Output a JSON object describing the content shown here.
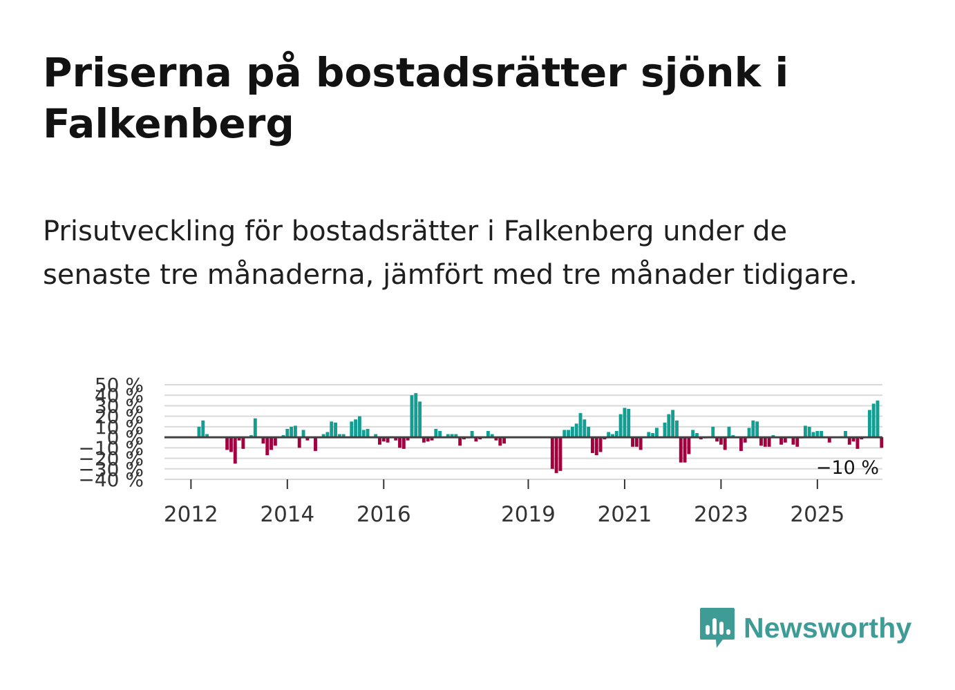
{
  "title": "Priserna på bostadsrätter sjönk i Falkenberg",
  "subtitle": "Prisutveckling för bostadsrätter i Falkenberg under de senaste tre månaderna, jämfört med tre månader tidigare.",
  "brand": {
    "name": "Newsworthy",
    "icon": "newsworthy-logo-icon",
    "color": "#3f9b95"
  },
  "colors": {
    "positive": "#139e94",
    "negative": "#a3003f",
    "grid": "#d9d9d9",
    "zero_line": "#404040"
  },
  "chart_data": {
    "type": "bar",
    "title": "",
    "xlabel": "",
    "ylabel": "",
    "ylim": [
      -40,
      50
    ],
    "y_ticks": [
      50,
      40,
      30,
      20,
      10,
      0,
      -10,
      -20,
      -30,
      -40
    ],
    "y_tick_labels": [
      "50 %",
      "40 %",
      "30 %",
      "20 %",
      "10 %",
      "0 %",
      "−10 %",
      "−20 %",
      "−30 %",
      "−40 %"
    ],
    "x_ticks": [
      2012,
      2014,
      2016,
      2019,
      2021,
      2023,
      2025
    ],
    "x_tick_labels": [
      "2012",
      "2014",
      "2016",
      "2019",
      "2021",
      "2023",
      "2025"
    ],
    "x_range": [
      2011.45,
      2026.35
    ],
    "start": 2012.1667,
    "step_years": 0.08333,
    "last_value_label": "−10 %",
    "values": [
      10,
      16,
      3,
      0,
      0,
      0,
      0,
      -12,
      -14,
      -25,
      -3,
      -11,
      0,
      2,
      18,
      1,
      -6,
      -17,
      -12,
      -8,
      0,
      2,
      8,
      10,
      11,
      -10,
      7,
      -3,
      0,
      -13,
      0,
      3,
      5,
      15,
      14,
      3,
      3,
      0,
      15,
      17,
      20,
      7,
      8,
      0,
      3,
      -7,
      -4,
      -5,
      1,
      -3,
      -10,
      -11,
      -3,
      40,
      42,
      34,
      -5,
      -4,
      -3,
      8,
      6,
      0,
      3,
      3,
      3,
      -8,
      -2,
      -1,
      6,
      -4,
      -2,
      0,
      6,
      3,
      -3,
      -8,
      -6,
      0,
      0,
      0,
      0,
      0,
      0,
      0,
      0,
      0,
      0,
      0,
      -30,
      -34,
      -32,
      7,
      7,
      10,
      13,
      23,
      17,
      10,
      -15,
      -17,
      -14,
      -2,
      5,
      3,
      6,
      22,
      28,
      27,
      -9,
      -9,
      -12,
      0,
      5,
      4,
      9,
      0,
      14,
      22,
      26,
      16,
      -24,
      -24,
      -16,
      7,
      4,
      -2,
      -1,
      1,
      10,
      -4,
      -7,
      -12,
      10,
      2,
      0,
      -13,
      -5,
      9,
      16,
      15,
      -8,
      -9,
      -9,
      2,
      0,
      -7,
      -5,
      0,
      -7,
      -9,
      -1,
      11,
      10,
      5,
      6,
      6,
      0,
      -5,
      0,
      0,
      1,
      6,
      -7,
      -4,
      -11,
      -2,
      0,
      26,
      32,
      35,
      -10
    ]
  }
}
